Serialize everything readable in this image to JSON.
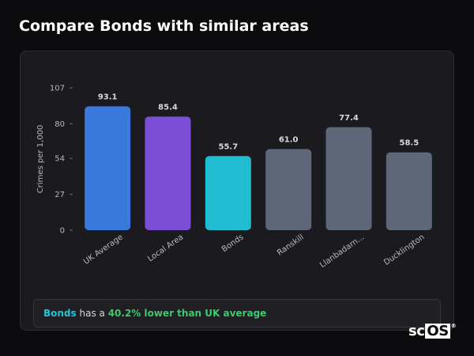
{
  "page": {
    "title": "Compare Bonds with similar areas"
  },
  "summary": {
    "area": "Bonds",
    "middle": " has a ",
    "comparison": "40.2% lower than UK average"
  },
  "logo": {
    "text_sc": "sc",
    "text_os": "OS",
    "reg": "®"
  },
  "chart_data": {
    "type": "bar",
    "categories": [
      "UK Average",
      "Local Area",
      "Bonds",
      "Ranskill",
      "Llanbadarn...",
      "Ducklington"
    ],
    "values": [
      93.1,
      85.4,
      55.7,
      61.0,
      77.4,
      58.5
    ],
    "value_labels": [
      "93.1",
      "85.4",
      "55.7",
      "61.0",
      "77.4",
      "58.5"
    ],
    "colors": [
      "#3a78d9",
      "#7a4fd6",
      "#22bcd2",
      "#5e6777",
      "#5e6777",
      "#5e6777"
    ],
    "title": "",
    "xlabel": "",
    "ylabel": "Crimes per 1,000",
    "ylim": [
      0,
      107
    ],
    "yticks": [
      0,
      27,
      54,
      80,
      107
    ],
    "grid": false,
    "legend": "none"
  }
}
